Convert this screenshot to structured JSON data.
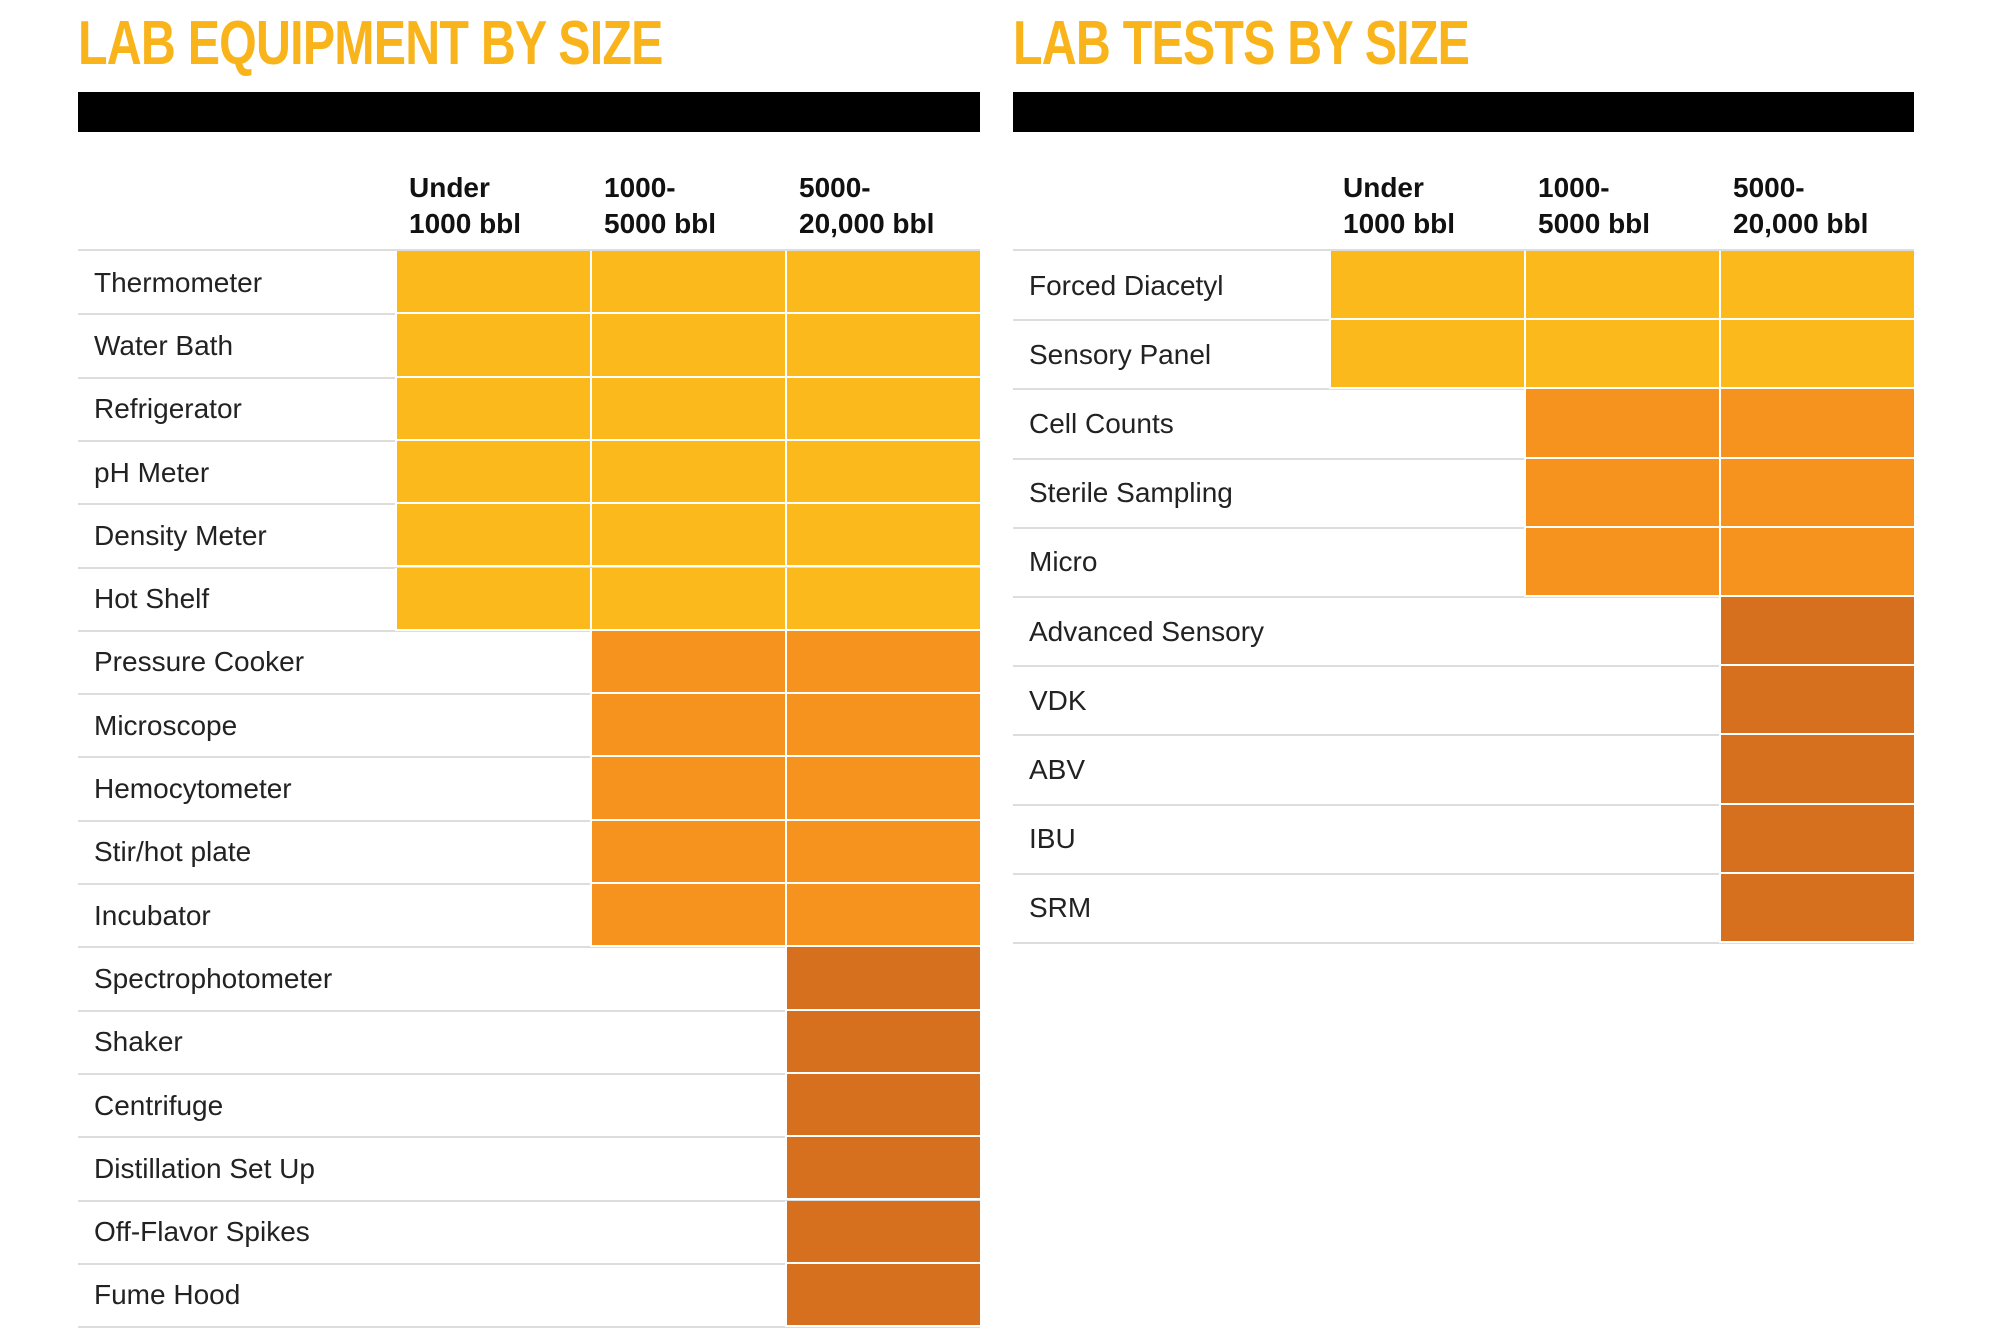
{
  "tables": [
    {
      "title": "LAB EQUIPMENT BY SIZE",
      "columns": [
        "Under\n1000 bbl",
        "1000-\n5000 bbl",
        "5000-\n20,000 bbl"
      ],
      "groups": [
        {
          "start_column": 0,
          "color": "#fbb91c",
          "rows": [
            "Thermometer",
            "Water Bath",
            "Refrigerator",
            "pH Meter",
            "Density Meter",
            "Hot Shelf"
          ]
        },
        {
          "start_column": 1,
          "color": "#f6931f",
          "rows": [
            "Pressure Cooker",
            "Microscope",
            "Hemocytometer",
            "Stir/hot plate",
            "Incubator"
          ]
        },
        {
          "start_column": 2,
          "color": "#d6701f",
          "rows": [
            "Spectrophotometer",
            "Shaker",
            "Centrifuge",
            "Distillation Set Up",
            "Off-Flavor Spikes",
            "Fume Hood"
          ]
        }
      ]
    },
    {
      "title": "LAB TESTS BY SIZE",
      "columns": [
        "Under\n1000 bbl",
        "1000-\n5000 bbl",
        "5000-\n20,000 bbl"
      ],
      "groups": [
        {
          "start_column": 0,
          "color": "#fbb91c",
          "rows": [
            "Forced Diacetyl",
            "Sensory Panel"
          ]
        },
        {
          "start_column": 1,
          "color": "#f6931f",
          "rows": [
            "Cell Counts",
            "Sterile Sampling",
            "Micro"
          ]
        },
        {
          "start_column": 2,
          "color": "#d6701f",
          "rows": [
            "Advanced Sensory",
            "VDK",
            "ABV",
            "IBU",
            "SRM"
          ]
        }
      ]
    }
  ]
}
